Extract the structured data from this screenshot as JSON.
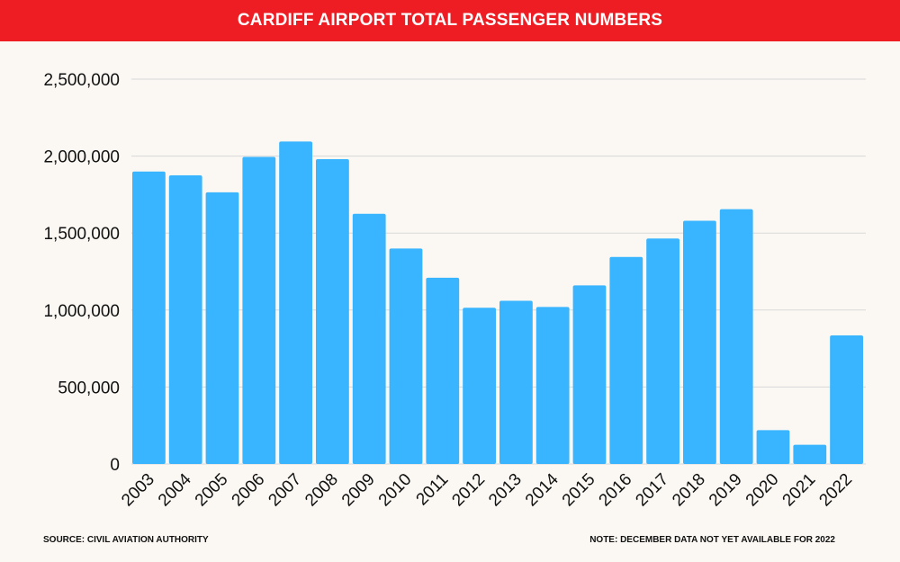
{
  "header": {
    "title": "CARDIFF AIRPORT TOTAL PASSENGER NUMBERS"
  },
  "footer": {
    "source": "SOURCE: CIVIL AVIATION AUTHORITY",
    "note": "NOTE: DECEMBER DATA NOT YET AVAILABLE FOR 2022"
  },
  "colors": {
    "title_bar": "#ee1d23",
    "bar": "#39b5ff",
    "background": "#fbf8f3",
    "grid": "#d9d9d9"
  },
  "chart_data": {
    "type": "bar",
    "title": "CARDIFF AIRPORT TOTAL PASSENGER NUMBERS",
    "xlabel": "",
    "ylabel": "",
    "categories": [
      "2003",
      "2004",
      "2005",
      "2006",
      "2007",
      "2008",
      "2009",
      "2010",
      "2011",
      "2012",
      "2013",
      "2014",
      "2015",
      "2016",
      "2017",
      "2018",
      "2019",
      "2020",
      "2021",
      "2022"
    ],
    "values": [
      1900000,
      1875000,
      1765000,
      1995000,
      2095000,
      1980000,
      1625000,
      1400000,
      1210000,
      1015000,
      1060000,
      1020000,
      1160000,
      1345000,
      1465000,
      1580000,
      1655000,
      220000,
      125000,
      835000
    ],
    "ylim": [
      0,
      2500000
    ],
    "yticks": [
      0,
      500000,
      1000000,
      1500000,
      2000000,
      2500000
    ],
    "ytick_labels": [
      "0",
      "500,000",
      "1,000,000",
      "1,500,000",
      "2,000,000",
      "2,500,000"
    ],
    "grid": true,
    "legend": "none"
  }
}
